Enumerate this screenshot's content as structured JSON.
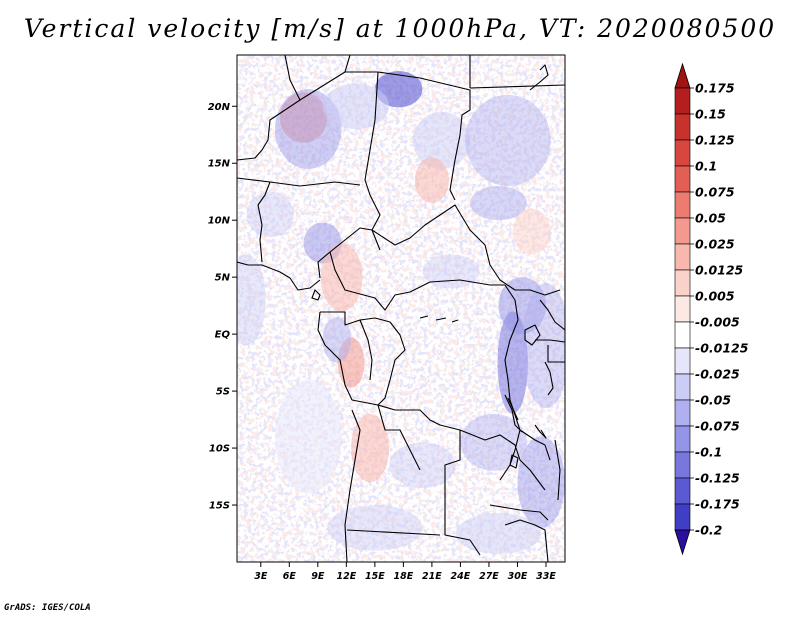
{
  "title": "Vertical velocity [m/s] at 1000hPa, VT: 2020080500",
  "credit": "GrADS: IGES/COLA",
  "map": {
    "variable": "Vertical velocity",
    "units": "m/s",
    "level": "1000hPa",
    "valid_time": "2020080500",
    "lat_ticks": [
      {
        "label": "20N",
        "lat": 20
      },
      {
        "label": "15N",
        "lat": 15
      },
      {
        "label": "10N",
        "lat": 10
      },
      {
        "label": "5N",
        "lat": 5
      },
      {
        "label": "EQ",
        "lat": 0
      },
      {
        "label": "5S",
        "lat": -5
      },
      {
        "label": "10S",
        "lat": -10
      },
      {
        "label": "15S",
        "lat": -15
      }
    ],
    "lon_ticks": [
      {
        "label": "3E",
        "lon": 3
      },
      {
        "label": "6E",
        "lon": 6
      },
      {
        "label": "9E",
        "lon": 9
      },
      {
        "label": "12E",
        "lon": 12
      },
      {
        "label": "15E",
        "lon": 15
      },
      {
        "label": "18E",
        "lon": 18
      },
      {
        "label": "21E",
        "lon": 21
      },
      {
        "label": "24E",
        "lon": 24
      },
      {
        "label": "27E",
        "lon": 27
      },
      {
        "label": "30E",
        "lon": 30
      },
      {
        "label": "33E",
        "lon": 33
      }
    ],
    "extent": {
      "lon_min": 0.5,
      "lon_max": 35,
      "lat_min": -20,
      "lat_max": 24.5
    }
  },
  "colorbar": {
    "levels": [
      {
        "label": "0.175",
        "color": "#b41e1e"
      },
      {
        "label": "0.15",
        "color": "#c8322d"
      },
      {
        "label": "0.125",
        "color": "#d94640"
      },
      {
        "label": "0.1",
        "color": "#e35f55"
      },
      {
        "label": "0.075",
        "color": "#ec7b70"
      },
      {
        "label": "0.05",
        "color": "#f3998e"
      },
      {
        "label": "0.025",
        "color": "#f8b8ae"
      },
      {
        "label": "0.0125",
        "color": "#fbd2ca"
      },
      {
        "label": "0.005",
        "color": "#fde9e4"
      },
      {
        "label": "-0.005",
        "color": "#ffffff"
      },
      {
        "label": "-0.0125",
        "color": "#e6e6fb"
      },
      {
        "label": "-0.025",
        "color": "#cccdf6"
      },
      {
        "label": "-0.05",
        "color": "#b0b0f0"
      },
      {
        "label": "-0.075",
        "color": "#9494e8"
      },
      {
        "label": "-0.1",
        "color": "#7877de"
      },
      {
        "label": "-0.125",
        "color": "#5c5ad2"
      },
      {
        "label": "-0.175",
        "color": "#3f3ec4"
      },
      {
        "label": "-0.2",
        "color": "#2a20b0"
      }
    ],
    "top_extend_color": "#a01414",
    "bottom_extend_color": "#2a0ea0"
  },
  "field_patches": [
    {
      "lon": 7.5,
      "lat": 19.0,
      "rx": 2.5,
      "ry": 2.2,
      "color": "#f3998e",
      "opacity": 0.55
    },
    {
      "lon": 8.0,
      "lat": 18.0,
      "rx": 3.5,
      "ry": 3.5,
      "color": "#9494e8",
      "opacity": 0.45
    },
    {
      "lon": 17.5,
      "lat": 21.5,
      "rx": 2.5,
      "ry": 1.6,
      "color": "#5c5ad2",
      "opacity": 0.6
    },
    {
      "lon": 13.0,
      "lat": 20.0,
      "rx": 3.5,
      "ry": 2.0,
      "color": "#cccdf6",
      "opacity": 0.55
    },
    {
      "lon": 22.0,
      "lat": 17.0,
      "rx": 3.0,
      "ry": 2.5,
      "color": "#cccdf6",
      "opacity": 0.5
    },
    {
      "lon": 29.0,
      "lat": 17.0,
      "rx": 4.5,
      "ry": 4.0,
      "color": "#b0b0f0",
      "opacity": 0.45
    },
    {
      "lon": 28.0,
      "lat": 11.5,
      "rx": 3.0,
      "ry": 1.5,
      "color": "#b0b0f0",
      "opacity": 0.5
    },
    {
      "lon": 21.0,
      "lat": 13.5,
      "rx": 1.8,
      "ry": 2.0,
      "color": "#f8b8ae",
      "opacity": 0.55
    },
    {
      "lon": 4.0,
      "lat": 10.5,
      "rx": 2.5,
      "ry": 2.0,
      "color": "#cccdf6",
      "opacity": 0.45
    },
    {
      "lon": 9.5,
      "lat": 8.0,
      "rx": 2.0,
      "ry": 1.8,
      "color": "#9494e8",
      "opacity": 0.5
    },
    {
      "lon": 11.5,
      "lat": 5.0,
      "rx": 2.2,
      "ry": 3.0,
      "color": "#f8b8ae",
      "opacity": 0.55
    },
    {
      "lon": 1.5,
      "lat": 3.0,
      "rx": 2.0,
      "ry": 4.0,
      "color": "#cccdf6",
      "opacity": 0.45
    },
    {
      "lon": 12.5,
      "lat": -2.5,
      "rx": 1.4,
      "ry": 2.2,
      "color": "#f3998e",
      "opacity": 0.55
    },
    {
      "lon": 11.0,
      "lat": -0.5,
      "rx": 1.5,
      "ry": 2.0,
      "color": "#b0b0f0",
      "opacity": 0.5
    },
    {
      "lon": 29.5,
      "lat": -2.5,
      "rx": 1.6,
      "ry": 4.5,
      "color": "#7877de",
      "opacity": 0.55
    },
    {
      "lon": 30.5,
      "lat": 2.5,
      "rx": 2.5,
      "ry": 2.5,
      "color": "#9494e8",
      "opacity": 0.5
    },
    {
      "lon": 33.0,
      "lat": -1.0,
      "rx": 2.5,
      "ry": 5.5,
      "color": "#b0b0f0",
      "opacity": 0.45
    },
    {
      "lon": 27.5,
      "lat": -9.5,
      "rx": 3.5,
      "ry": 2.5,
      "color": "#b0b0f0",
      "opacity": 0.45
    },
    {
      "lon": 32.5,
      "lat": -13.0,
      "rx": 2.5,
      "ry": 4.0,
      "color": "#9494e8",
      "opacity": 0.45
    },
    {
      "lon": 14.5,
      "lat": -10.0,
      "rx": 2.0,
      "ry": 3.0,
      "color": "#f8b8ae",
      "opacity": 0.55
    },
    {
      "lon": 20.0,
      "lat": -11.5,
      "rx": 3.5,
      "ry": 2.0,
      "color": "#cccdf6",
      "opacity": 0.45
    },
    {
      "lon": 8.0,
      "lat": -9.0,
      "rx": 3.5,
      "ry": 5.0,
      "color": "#e6e6fb",
      "opacity": 0.5
    },
    {
      "lon": 15.0,
      "lat": -17.0,
      "rx": 5.0,
      "ry": 2.0,
      "color": "#cccdf6",
      "opacity": 0.45
    },
    {
      "lon": 28.0,
      "lat": -17.5,
      "rx": 4.5,
      "ry": 1.8,
      "color": "#cccdf6",
      "opacity": 0.5
    },
    {
      "lon": 23.0,
      "lat": 5.5,
      "rx": 3.0,
      "ry": 1.5,
      "color": "#cccdf6",
      "opacity": 0.45
    },
    {
      "lon": 31.5,
      "lat": 9.0,
      "rx": 2.0,
      "ry": 2.0,
      "color": "#fbd2ca",
      "opacity": 0.5
    }
  ]
}
